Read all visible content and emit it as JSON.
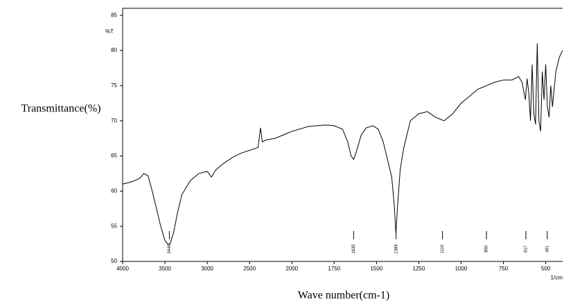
{
  "chart_data": {
    "type": "line",
    "ylabel": "Transmittance(%)",
    "xlabel": "Wave number(cm-1)",
    "y_unit": "%T",
    "x_unit": "1/cm",
    "x_reversed": true,
    "x_axis_break": 2000,
    "x_expand_below_break": 2,
    "xlim": [
      4000,
      400
    ],
    "ylim": [
      50,
      86
    ],
    "xticks": [
      4000,
      3500,
      3000,
      2500,
      2000,
      1750,
      1500,
      1250,
      1000,
      750,
      500
    ],
    "yticks": [
      50,
      55,
      60,
      65,
      70,
      75,
      80,
      85
    ],
    "x": [
      4000,
      3900,
      3800,
      3750,
      3700,
      3650,
      3600,
      3550,
      3500,
      3470,
      3440,
      3400,
      3350,
      3300,
      3200,
      3100,
      3000,
      2950,
      2900,
      2800,
      2700,
      2600,
      2500,
      2400,
      2370,
      2350,
      2300,
      2200,
      2100,
      2000,
      1900,
      1800,
      1750,
      1700,
      1670,
      1650,
      1635,
      1620,
      1590,
      1560,
      1520,
      1490,
      1460,
      1430,
      1410,
      1395,
      1385,
      1375,
      1360,
      1340,
      1300,
      1250,
      1200,
      1150,
      1100,
      1050,
      1000,
      950,
      900,
      850,
      800,
      750,
      700,
      660,
      640,
      620,
      610,
      600,
      590,
      580,
      570,
      560,
      550,
      540,
      530,
      520,
      510,
      500,
      490,
      480,
      470,
      460,
      440,
      420,
      400
    ],
    "series": [
      {
        "color": "#000000",
        "values": [
          61,
          61.3,
          61.8,
          62.5,
          62.2,
          60,
          57.5,
          55,
          53,
          52.5,
          52.5,
          54,
          57,
          59.5,
          61.5,
          62.5,
          62.8,
          62,
          63,
          64,
          64.8,
          65.4,
          65.8,
          66.2,
          69,
          67,
          67.3,
          67.5,
          68,
          68.5,
          69.2,
          69.4,
          69.3,
          68.8,
          67,
          65,
          64.5,
          65.5,
          68,
          69,
          69.3,
          68.8,
          67,
          64,
          62,
          58,
          54,
          58,
          63,
          66,
          70,
          71,
          71.3,
          70.5,
          70,
          71,
          72.5,
          73.5,
          74.5,
          75,
          75.5,
          75.8,
          75.8,
          76.3,
          75.5,
          73,
          76,
          74,
          70,
          78,
          71,
          69.5,
          81,
          70,
          68.5,
          77,
          73,
          78,
          72,
          70.5,
          75,
          72,
          77,
          79,
          80
        ]
      }
    ],
    "peaks": [
      3448,
      1635,
      1384,
      1110,
      850,
      617,
      491
    ]
  }
}
